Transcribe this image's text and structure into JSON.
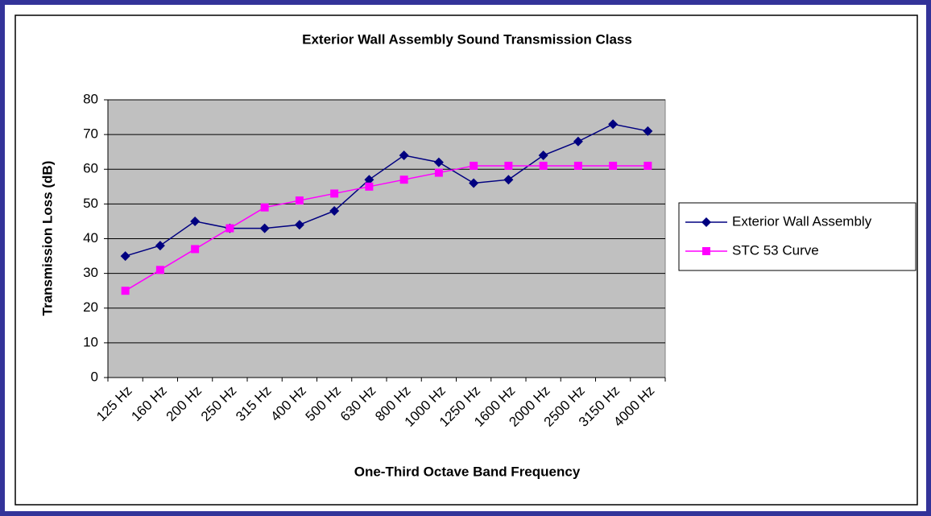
{
  "chart_data": {
    "type": "line",
    "title": "Exterior Wall Assembly Sound Transmission Class",
    "x_label": "One-Third Octave Band Frequency",
    "y_label": "Transmission Loss (dB)",
    "categories": [
      "125 Hz",
      "160 Hz",
      "200 Hz",
      "250 Hz",
      "315 Hz",
      "400 Hz",
      "500 Hz",
      "630 Hz",
      "800 Hz",
      "1000 Hz",
      "1250 Hz",
      "1600 Hz",
      "2000 Hz",
      "2500 Hz",
      "3150 Hz",
      "4000 Hz"
    ],
    "series": [
      {
        "name": "Exterior Wall Assembly",
        "color": "#000080",
        "marker": "diamond",
        "values": [
          35,
          38,
          45,
          43,
          43,
          44,
          48,
          57,
          64,
          62,
          56,
          57,
          64,
          68,
          73,
          71
        ]
      },
      {
        "name": "STC 53 Curve",
        "color": "#ff00ff",
        "marker": "square",
        "values": [
          25,
          31,
          37,
          43,
          49,
          51,
          53,
          55,
          57,
          59,
          61,
          61,
          61,
          61,
          61,
          61
        ]
      }
    ],
    "ylim": [
      0,
      80
    ],
    "yticks": [
      0,
      10,
      20,
      30,
      40,
      50,
      60,
      70,
      80
    ],
    "grid": true,
    "legend": "right",
    "plot_background": "#c0c0c0"
  }
}
